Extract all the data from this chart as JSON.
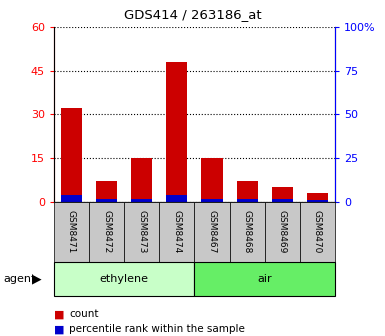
{
  "title": "GDS414 / 263186_at",
  "categories": [
    "GSM8471",
    "GSM8472",
    "GSM8473",
    "GSM8474",
    "GSM8467",
    "GSM8468",
    "GSM8469",
    "GSM8470"
  ],
  "red_counts": [
    32,
    7,
    15,
    48,
    15,
    7,
    5,
    3
  ],
  "blue_percentiles": [
    4.0,
    1.5,
    1.5,
    3.5,
    1.5,
    1.5,
    1.5,
    1.0
  ],
  "ylim_left": [
    0,
    60
  ],
  "ylim_right": [
    0,
    100
  ],
  "yticks_left": [
    0,
    15,
    30,
    45,
    60
  ],
  "yticks_right": [
    0,
    25,
    50,
    75,
    100
  ],
  "ytick_labels_left": [
    "0",
    "15",
    "30",
    "45",
    "60"
  ],
  "ytick_labels_right": [
    "0",
    "25",
    "50",
    "75",
    "100%"
  ],
  "group_labels": [
    "ethylene",
    "air"
  ],
  "agent_label": "agent",
  "ethylene_color": "#c8ffc8",
  "air_color": "#66ee66",
  "bar_color_red": "#cc0000",
  "bar_color_blue": "#0000cc",
  "bar_width": 0.6,
  "plot_bg_color": "#ffffff",
  "tick_bg_color": "#c8c8c8",
  "legend_count_label": "count",
  "legend_pct_label": "percentile rank within the sample"
}
